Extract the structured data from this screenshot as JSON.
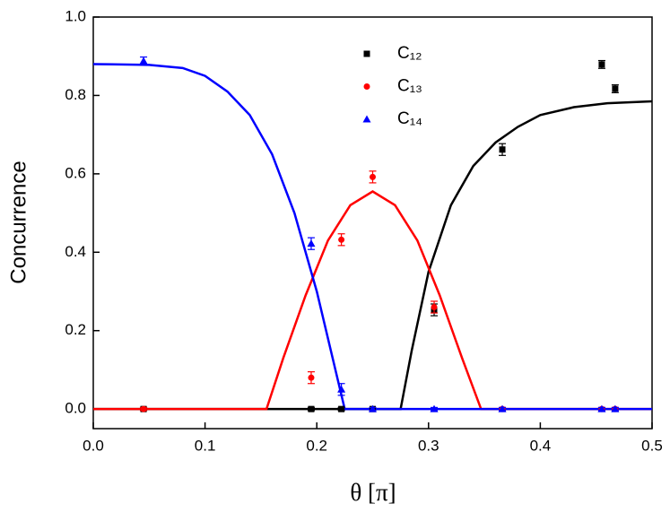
{
  "chart_data": {
    "type": "scatter",
    "xlabel": "θ [π]",
    "ylabel": "Concurrence",
    "xlim": [
      0,
      0.5
    ],
    "ylim": [
      -0.05,
      1.0
    ],
    "xticks": [
      {
        "value": 0,
        "label": "0.0"
      },
      0.1,
      0.2,
      0.3,
      0.4,
      0.5
    ],
    "yticks": [
      {
        "value": 0,
        "label": "0.0"
      },
      0.2,
      0.4,
      0.6,
      0.8,
      {
        "value": 1,
        "label": "1.0"
      }
    ],
    "series": [
      {
        "name": "C₁₂",
        "color": "#000000",
        "marker": "square",
        "x": [
          0.045,
          0.195,
          0.222,
          0.25,
          0.305,
          0.366,
          0.455,
          0.467
        ],
        "values": [
          0,
          0,
          0,
          0,
          0.253,
          0.662,
          0.879,
          0.817
        ],
        "errors": [
          0.004,
          0.004,
          0.004,
          0.004,
          0.015,
          0.015,
          0.01,
          0.01
        ]
      },
      {
        "name": "C₁₃",
        "color": "#ff0000",
        "marker": "circle",
        "x": [
          0.045,
          0.195,
          0.222,
          0.25,
          0.305,
          0.366,
          0.455,
          0.467
        ],
        "values": [
          0,
          0.08,
          0.432,
          0.592,
          0.26,
          0,
          0,
          0
        ],
        "errors": [
          0.004,
          0.015,
          0.015,
          0.015,
          0.015,
          0.004,
          0.004,
          0.004
        ]
      },
      {
        "name": "C₁₄",
        "color": "#0000ff",
        "marker": "triangle",
        "x": [
          0.045,
          0.195,
          0.222,
          0.25,
          0.305,
          0.366,
          0.455,
          0.467
        ],
        "values": [
          0.888,
          0.422,
          0.05,
          0,
          0,
          0,
          0,
          0
        ],
        "errors": [
          0.01,
          0.015,
          0.015,
          0.004,
          0.004,
          0.004,
          0.004,
          0.004
        ]
      }
    ],
    "curves": [
      {
        "color": "#000000",
        "x": [
          0,
          0.275,
          0.285,
          0.3,
          0.32,
          0.34,
          0.36,
          0.38,
          0.4,
          0.43,
          0.46,
          0.5
        ],
        "values": [
          0,
          0,
          0.15,
          0.35,
          0.52,
          0.62,
          0.68,
          0.72,
          0.75,
          0.77,
          0.78,
          0.785
        ]
      },
      {
        "color": "#ff0000",
        "x": [
          0,
          0.155,
          0.17,
          0.19,
          0.21,
          0.23,
          0.25,
          0.27,
          0.29,
          0.31,
          0.33,
          0.347,
          0.5
        ],
        "values": [
          0,
          0,
          0.13,
          0.29,
          0.43,
          0.52,
          0.555,
          0.52,
          0.43,
          0.29,
          0.13,
          0,
          0
        ]
      },
      {
        "color": "#0000ff",
        "x": [
          0,
          0.05,
          0.08,
          0.1,
          0.12,
          0.14,
          0.16,
          0.18,
          0.2,
          0.21,
          0.225,
          0.5
        ],
        "values": [
          0.88,
          0.878,
          0.87,
          0.85,
          0.81,
          0.75,
          0.65,
          0.5,
          0.3,
          0.18,
          0,
          0
        ]
      }
    ]
  }
}
